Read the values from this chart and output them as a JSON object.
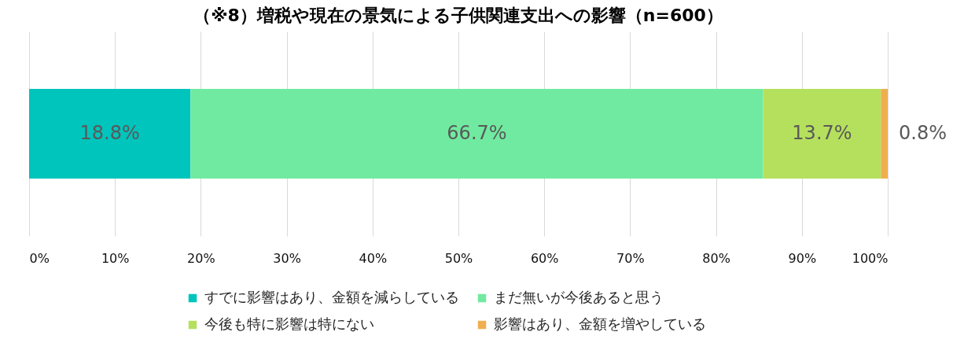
{
  "chart_data": {
    "type": "bar",
    "orientation": "horizontal",
    "stacked": true,
    "title": "（※8）増税や現在の景気による子供関連支出への影響（n=600）",
    "categories": [
      null
    ],
    "series": [
      {
        "name": "すでに影響はあり、金額を減らしている",
        "color": "#00c5bc",
        "values": [
          18.8
        ],
        "value_labels": [
          "18.8%"
        ]
      },
      {
        "name": "まだ無いが今後あると思う",
        "color": "#70eaa0",
        "values": [
          66.7
        ],
        "value_labels": [
          "66.7%"
        ]
      },
      {
        "name": "今後も特に影響は特にない",
        "color": "#b5e05e",
        "values": [
          13.7
        ],
        "value_labels": [
          "13.7%"
        ]
      },
      {
        "name": "影響はあり、金額を増やしている",
        "color": "#efaf4e",
        "values": [
          0.8
        ],
        "value_labels": [
          "0.8%"
        ]
      }
    ],
    "xlim": [
      0,
      100
    ],
    "xticks": [
      {
        "value": 0,
        "label": "0%"
      },
      {
        "value": 10,
        "label": "10%"
      },
      {
        "value": 20,
        "label": "20%"
      },
      {
        "value": 30,
        "label": "30%"
      },
      {
        "value": 40,
        "label": "40%"
      },
      {
        "value": 50,
        "label": "50%"
      },
      {
        "value": 60,
        "label": "60%"
      },
      {
        "value": 70,
        "label": "70%"
      },
      {
        "value": 80,
        "label": "80%"
      },
      {
        "value": 90,
        "label": "90%"
      },
      {
        "value": 100,
        "label": "100%"
      }
    ],
    "grid": "x",
    "legend": "bottom"
  }
}
